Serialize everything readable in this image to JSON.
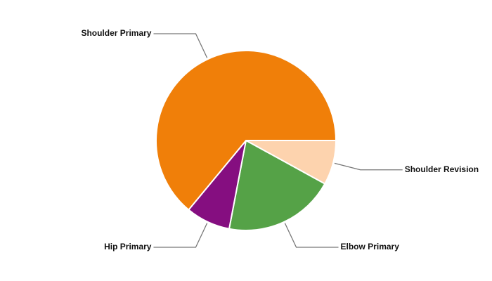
{
  "chart_data": {
    "type": "pie",
    "categories": [
      "Shoulder Revision",
      "Elbow Primary",
      "Hip Primary",
      "Shoulder Primary"
    ],
    "values": [
      8,
      20,
      8,
      64
    ],
    "colors": [
      "#fdd3ae",
      "#55a247",
      "#850e80",
      "#f07f09"
    ]
  }
}
